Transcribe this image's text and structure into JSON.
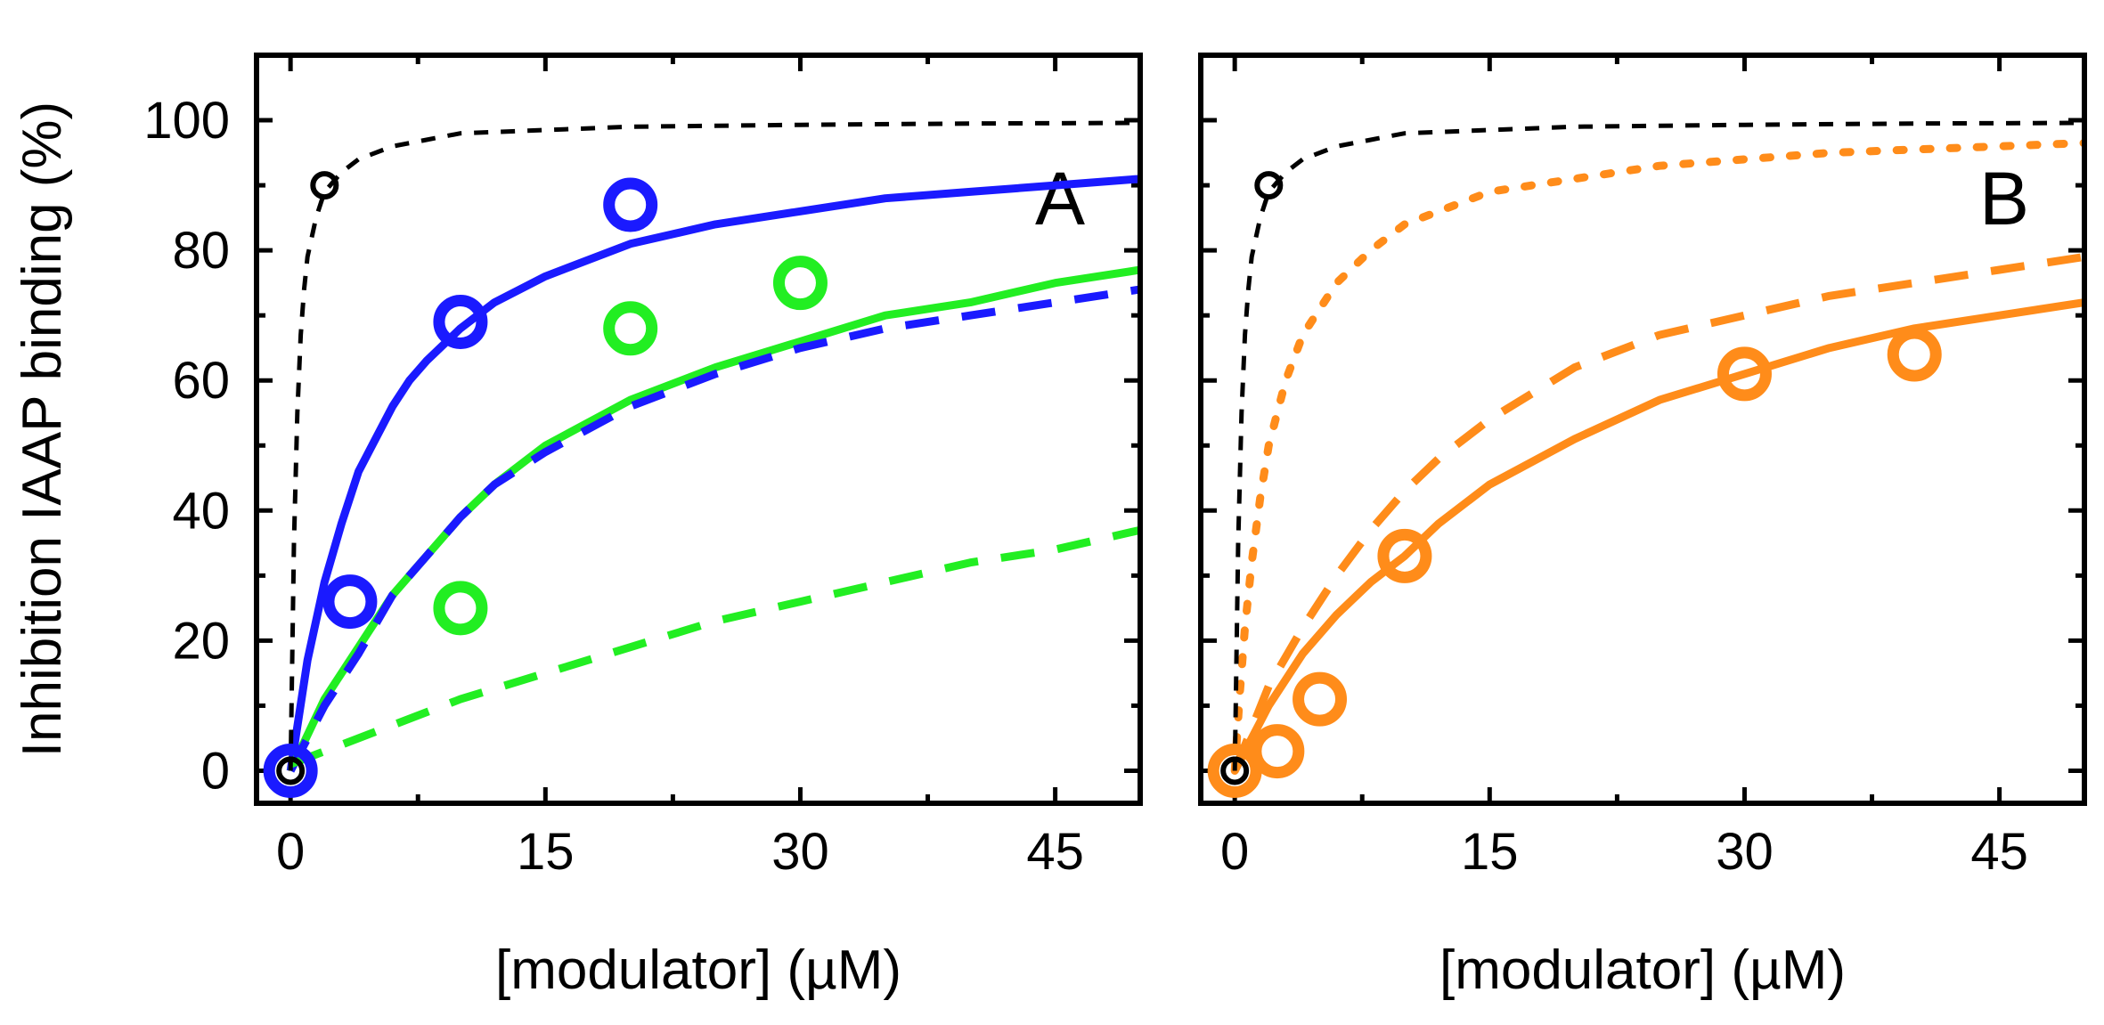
{
  "chart_data": [
    {
      "type": "scatter",
      "panel_label": "A",
      "xlabel": "[modulator] (µM)",
      "ylabel": "Inhibition IAAP binding (%)",
      "xlim": [
        -2,
        50
      ],
      "ylim": [
        -5,
        110
      ],
      "x_ticks": [
        0,
        15,
        30,
        45
      ],
      "y_ticks": [
        0,
        20,
        40,
        60,
        80,
        100
      ],
      "grid": false,
      "colors": {
        "blue": "#1a1aff",
        "green": "#22ee22",
        "black": "#000000"
      },
      "series": [
        {
          "color": "#1a1aff",
          "kind": "points",
          "marker_size": "large",
          "x": [
            0,
            3.5,
            10,
            20
          ],
          "y": [
            0,
            26,
            69,
            87
          ]
        },
        {
          "color": "#22ee22",
          "kind": "points",
          "marker_size": "large",
          "x": [
            10,
            20,
            30
          ],
          "y": [
            25,
            68,
            75
          ]
        },
        {
          "color": "#000000",
          "kind": "points",
          "marker_size": "small",
          "x": [
            0,
            2
          ],
          "y": [
            0,
            90
          ]
        },
        {
          "color": "#1a1aff",
          "kind": "curve",
          "dash": "solid",
          "x": [
            0,
            1,
            2,
            3,
            4,
            5,
            6,
            7,
            8,
            10,
            12,
            15,
            20,
            25,
            30,
            35,
            40,
            45,
            50
          ],
          "y": [
            0,
            17,
            29,
            38,
            46,
            51,
            56,
            60,
            63,
            68,
            72,
            76,
            81,
            84,
            86,
            88,
            89,
            90,
            91
          ]
        },
        {
          "color": "#22ee22",
          "kind": "curve",
          "dash": "solid",
          "x": [
            0,
            2,
            4,
            6,
            8,
            10,
            12,
            15,
            20,
            25,
            30,
            35,
            40,
            45,
            50
          ],
          "y": [
            0,
            11,
            19,
            27,
            33,
            39,
            44,
            50,
            57,
            62,
            66,
            70,
            72,
            75,
            77
          ]
        },
        {
          "color": "#1a1aff",
          "kind": "curve",
          "dash": "dashed",
          "x": [
            0,
            2,
            4,
            6,
            8,
            10,
            12,
            15,
            20,
            25,
            30,
            35,
            40,
            45,
            50
          ],
          "y": [
            0,
            10,
            18,
            27,
            33,
            39,
            44,
            49,
            56,
            61,
            65,
            68,
            70,
            72,
            74
          ]
        },
        {
          "color": "#22ee22",
          "kind": "curve",
          "dash": "dashed",
          "x": [
            0,
            5,
            10,
            15,
            20,
            25,
            30,
            35,
            40,
            45,
            50
          ],
          "y": [
            1,
            6,
            11,
            15,
            19,
            23,
            26,
            29,
            32,
            34,
            37
          ]
        },
        {
          "color": "#000000",
          "kind": "curve",
          "dash": "short-dashed",
          "x": [
            0,
            0.2,
            0.4,
            0.6,
            0.8,
            1,
            1.5,
            2,
            3,
            4,
            6,
            8,
            10,
            15,
            20,
            30,
            40,
            50
          ],
          "y": [
            0,
            35,
            55,
            67,
            74,
            79,
            85,
            89,
            92,
            94,
            96,
            97,
            98,
            98.5,
            99,
            99.3,
            99.5,
            99.6
          ]
        }
      ]
    },
    {
      "type": "scatter",
      "panel_label": "B",
      "xlabel": "[modulator] (µM)",
      "ylabel": "",
      "xlim": [
        -2,
        50
      ],
      "ylim": [
        -5,
        110
      ],
      "x_ticks": [
        0,
        15,
        30,
        45
      ],
      "y_ticks": [
        0,
        20,
        40,
        60,
        80,
        100
      ],
      "grid": false,
      "colors": {
        "orange": "#ff8c1a",
        "black": "#000000"
      },
      "series": [
        {
          "color": "#ff8c1a",
          "kind": "points",
          "marker_size": "large",
          "x": [
            0,
            2.5,
            5,
            10,
            30,
            40
          ],
          "y": [
            0,
            3,
            11,
            33,
            61,
            64
          ]
        },
        {
          "color": "#000000",
          "kind": "points",
          "marker_size": "small",
          "x": [
            0,
            2
          ],
          "y": [
            0,
            90
          ]
        },
        {
          "color": "#ff8c1a",
          "kind": "curve",
          "dash": "solid",
          "x": [
            0,
            2,
            4,
            6,
            8,
            10,
            12,
            15,
            20,
            25,
            30,
            35,
            40,
            45,
            50
          ],
          "y": [
            0,
            10,
            18,
            24,
            29,
            33,
            38,
            44,
            51,
            57,
            61,
            65,
            68,
            70,
            72
          ]
        },
        {
          "color": "#ff8c1a",
          "kind": "curve",
          "dash": "dashed",
          "x": [
            0,
            2,
            4,
            6,
            8,
            10,
            12,
            15,
            20,
            25,
            30,
            35,
            40,
            45,
            50
          ],
          "y": [
            0,
            13,
            22,
            30,
            37,
            43,
            48,
            54,
            62,
            67,
            70,
            73,
            75,
            77,
            79
          ]
        },
        {
          "color": "#ff8c1a",
          "kind": "curve",
          "dash": "dotted",
          "x": [
            0,
            0.3,
            0.6,
            1,
            1.5,
            2,
            3,
            4,
            6,
            8,
            10,
            15,
            20,
            25,
            30,
            35,
            40,
            45,
            50
          ],
          "y": [
            0,
            12,
            22,
            32,
            42,
            50,
            60,
            67,
            75,
            80,
            84,
            89,
            91,
            93,
            94,
            95,
            95.5,
            96,
            96.5
          ]
        },
        {
          "color": "#000000",
          "kind": "curve",
          "dash": "short-dashed",
          "x": [
            0,
            0.2,
            0.4,
            0.6,
            0.8,
            1,
            1.5,
            2,
            3,
            4,
            6,
            8,
            10,
            15,
            20,
            30,
            40,
            50
          ],
          "y": [
            0,
            35,
            55,
            67,
            74,
            79,
            85,
            89,
            92,
            94,
            96,
            97,
            98,
            98.5,
            99,
            99.3,
            99.5,
            99.6
          ]
        }
      ]
    }
  ]
}
